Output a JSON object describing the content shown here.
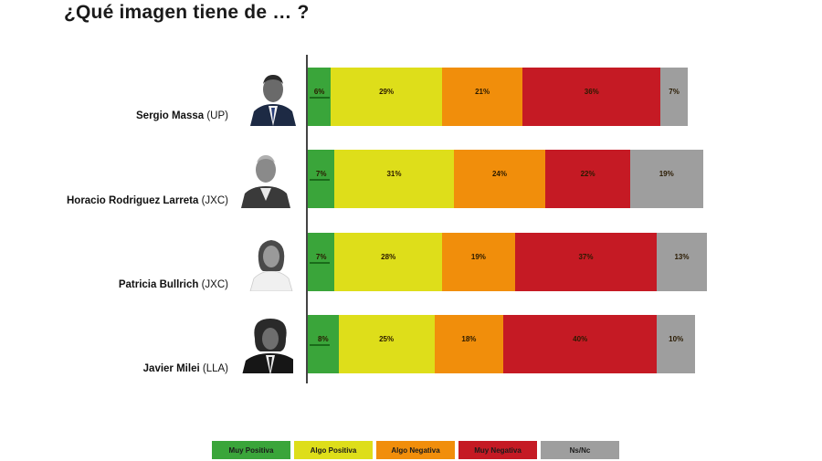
{
  "title": "¿Qué imagen tiene de … ?",
  "colors": {
    "muy_positiva": "#3aa53a",
    "algo_positiva": "#dede1a",
    "algo_negativa": "#f18e0b",
    "muy_negativa": "#c51a24",
    "ns_nc": "#9e9e9e"
  },
  "chart_data": {
    "type": "bar",
    "orientation": "horizontal-stacked",
    "title": "¿Qué imagen tiene de … ?",
    "categories": [
      {
        "name": "Sergio Massa",
        "party": "(UP)"
      },
      {
        "name": "Horacio Rodriguez Larreta",
        "party": "(JXC)"
      },
      {
        "name": "Patricia Bullrich",
        "party": "(JXC)"
      },
      {
        "name": "Javier Milei",
        "party": "(LLA)"
      }
    ],
    "series": [
      {
        "name": "Muy Positiva",
        "color": "#3aa53a",
        "values": [
          6,
          7,
          7,
          8
        ]
      },
      {
        "name": "Algo Positiva",
        "color": "#dede1a",
        "values": [
          29,
          31,
          28,
          25
        ]
      },
      {
        "name": "Algo Negativa",
        "color": "#f18e0b",
        "values": [
          21,
          24,
          19,
          18
        ]
      },
      {
        "name": "Muy Negativa",
        "color": "#c51a24",
        "values": [
          36,
          22,
          37,
          40
        ]
      },
      {
        "name": "Ns/Nc",
        "color": "#9e9e9e",
        "values": [
          7,
          19,
          13,
          10
        ]
      }
    ],
    "legend_position": "bottom",
    "grid": false
  }
}
